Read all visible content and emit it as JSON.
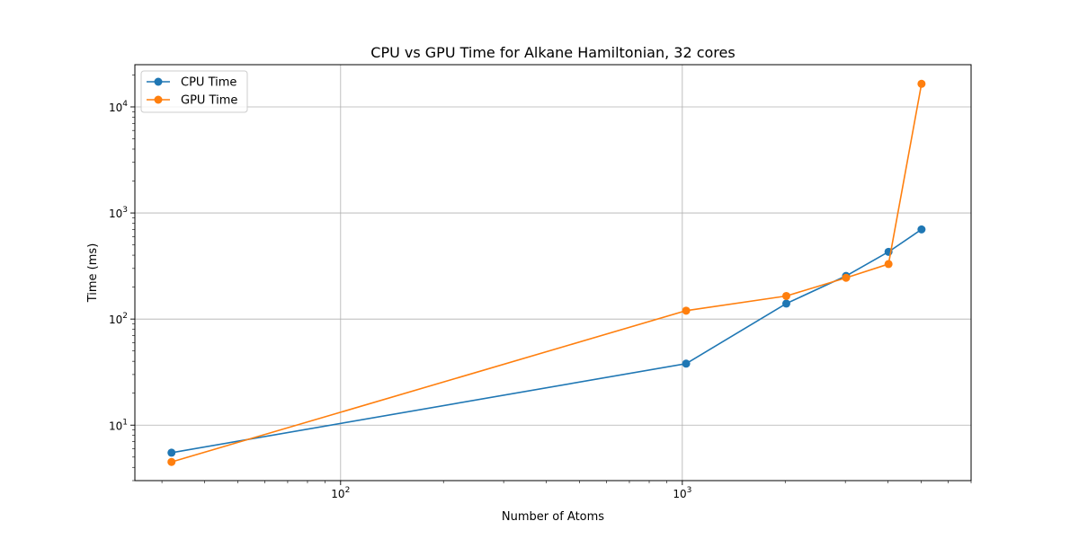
{
  "chart_data": {
    "type": "line",
    "title": "CPU vs GPU Time for Alkane Hamiltonian, 32 cores",
    "xlabel": "Number of Atoms",
    "ylabel": "Time (ms)",
    "xscale": "log",
    "yscale": "log",
    "xlim": [
      25,
      7000
    ],
    "ylim": [
      3,
      25000
    ],
    "x_major_ticks": [
      100,
      1000
    ],
    "y_major_ticks": [
      10,
      100,
      1000,
      10000
    ],
    "grid": true,
    "legend_position": "top-left",
    "series": [
      {
        "name": "CPU Time",
        "color": "#1f77b4",
        "x": [
          32,
          1026,
          2015,
          3014,
          4013,
          5012
        ],
        "y": [
          5.5,
          38,
          140,
          255,
          430,
          700
        ]
      },
      {
        "name": "GPU Time",
        "color": "#ff7f0e",
        "x": [
          32,
          1026,
          2015,
          3014,
          4013,
          5012
        ],
        "y": [
          4.5,
          120,
          165,
          245,
          330,
          16500
        ]
      }
    ]
  }
}
